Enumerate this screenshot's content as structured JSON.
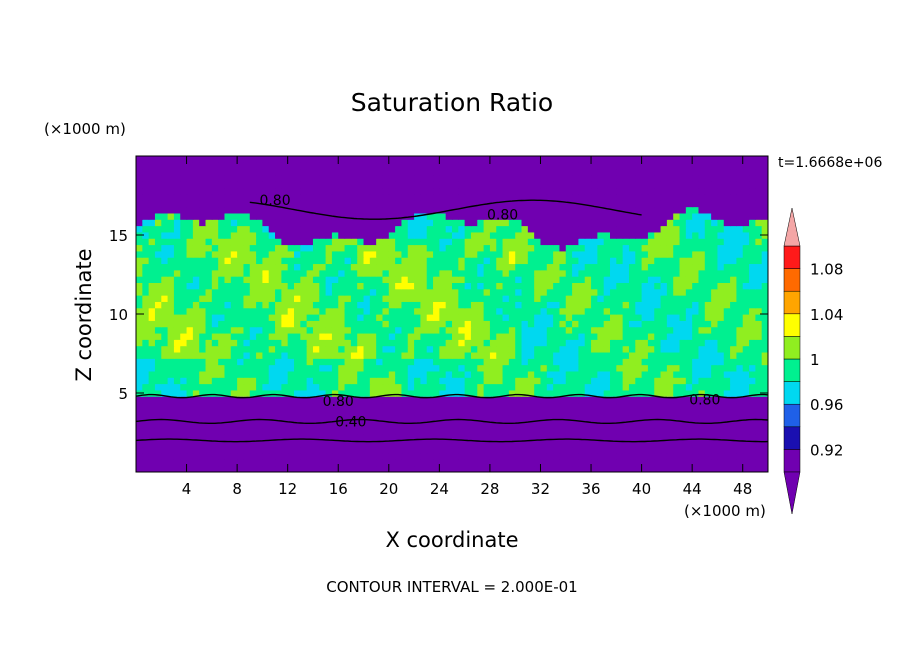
{
  "chart_data": {
    "type": "heatmap",
    "title": "Saturation Ratio",
    "xlabel": "X coordinate",
    "ylabel": "Z coordinate",
    "x_unit_label": "(×1000 m)",
    "y_unit_label": "(×1000 m)",
    "time_label": "t=1.6668e+06",
    "footer": "CONTOUR INTERVAL = 2.000E-01",
    "xlim": [
      0,
      50
    ],
    "ylim": [
      0,
      20
    ],
    "x_ticks": [
      "4",
      "8",
      "12",
      "16",
      "20",
      "24",
      "28",
      "32",
      "36",
      "40",
      "44",
      "48"
    ],
    "y_ticks": [
      "5",
      "10",
      "15"
    ],
    "colorbar": {
      "levels": [
        0.9,
        0.92,
        0.94,
        0.96,
        0.98,
        1.0,
        1.02,
        1.04,
        1.06,
        1.08,
        1.1
      ],
      "labels": [
        "0.92",
        "0.96",
        "1",
        "1.04",
        "1.08"
      ],
      "colors": [
        "#7000b0",
        "#1a0fb0",
        "#1f60e8",
        "#00d8f0",
        "#00f090",
        "#90ee20",
        "#ffff00",
        "#ffa500",
        "#ff6a00",
        "#ff1a1a"
      ],
      "under_color": "#7000b0",
      "over_color": "#f4a6a6"
    },
    "contour_labels": [
      {
        "text": "0.80",
        "x": 11,
        "z": 17.2
      },
      {
        "text": "0.80",
        "x": 29,
        "z": 16.3
      },
      {
        "text": "0.80",
        "x": 16,
        "z": 4.5
      },
      {
        "text": "0.40",
        "x": 17,
        "z": 3.2
      },
      {
        "text": "0.80",
        "x": 45,
        "z": 4.6
      }
    ]
  }
}
